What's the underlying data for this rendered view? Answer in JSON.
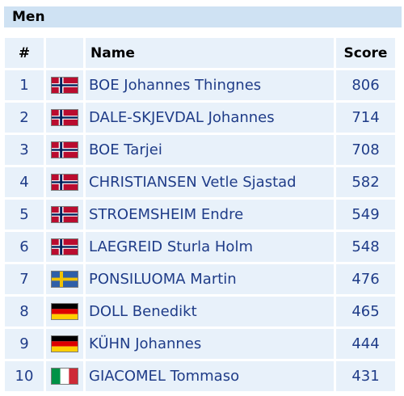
{
  "header": {
    "title": "Men"
  },
  "columns": {
    "rank": "#",
    "name": "Name",
    "score": "Score"
  },
  "rows": [
    {
      "rank": "1",
      "flag": "norway-flag-icon",
      "name": "BOE Johannes Thingnes",
      "score": "806"
    },
    {
      "rank": "2",
      "flag": "norway-flag-icon",
      "name": "DALE-SKJEVDAL Johannes",
      "score": "714"
    },
    {
      "rank": "3",
      "flag": "norway-flag-icon",
      "name": "BOE Tarjei",
      "score": "708"
    },
    {
      "rank": "4",
      "flag": "norway-flag-icon",
      "name": "CHRISTIANSEN Vetle Sjastad",
      "score": "582"
    },
    {
      "rank": "5",
      "flag": "norway-flag-icon",
      "name": "STROEMSHEIM Endre",
      "score": "549"
    },
    {
      "rank": "6",
      "flag": "norway-flag-icon",
      "name": "LAEGREID Sturla Holm",
      "score": "548"
    },
    {
      "rank": "7",
      "flag": "sweden-flag-icon",
      "name": "PONSILUOMA Martin",
      "score": "476"
    },
    {
      "rank": "8",
      "flag": "germany-flag-icon",
      "name": "DOLL Benedikt",
      "score": "465"
    },
    {
      "rank": "9",
      "flag": "germany-flag-icon",
      "name": "KÜHN Johannes",
      "score": "444"
    },
    {
      "rank": "10",
      "flag": "italy-flag-icon",
      "name": "GIACOMEL Tommaso",
      "score": "431"
    }
  ]
}
